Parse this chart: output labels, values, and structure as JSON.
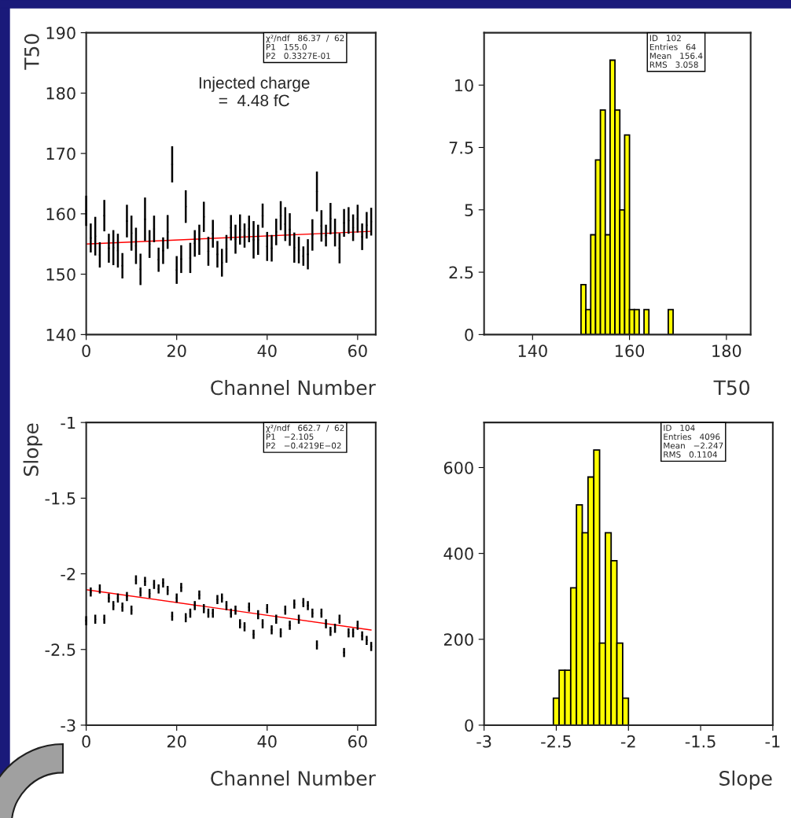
{
  "chart_data": [
    {
      "type": "scatter",
      "ylabel": "T50",
      "xlabel": "Channel Number",
      "xlim": [
        0,
        64
      ],
      "xticks": [
        0,
        20,
        40,
        60
      ],
      "ylim": [
        140,
        190
      ],
      "yticks": [
        140,
        150,
        160,
        170,
        180,
        190
      ],
      "marker": "none",
      "grid": false,
      "annotations": [
        "χ²/ndf   86.37  /  62\nP1   155.0\nP2   0.3327E-01",
        "Injected charge\n=  4.48 fC"
      ],
      "series": [
        {
          "type": "scatter",
          "color": "#000000",
          "x": [
            0,
            1,
            2,
            3,
            4,
            5,
            6,
            7,
            8,
            9,
            10,
            11,
            12,
            13,
            14,
            15,
            16,
            17,
            18,
            19,
            20,
            21,
            22,
            23,
            24,
            25,
            26,
            27,
            28,
            29,
            30,
            31,
            32,
            33,
            34,
            35,
            36,
            37,
            38,
            39,
            40,
            41,
            42,
            43,
            44,
            45,
            46,
            47,
            48,
            49,
            50,
            51,
            52,
            53,
            54,
            55,
            56,
            57,
            58,
            59,
            60,
            61,
            62,
            63
          ],
          "values": [
            160.5,
            156.0,
            156.3,
            153.2,
            159.7,
            154.3,
            154.4,
            153.9,
            151.4,
            158.8,
            156.8,
            154.7,
            150.8,
            159.1,
            155.0,
            157.5,
            152.4,
            153.9,
            157.0,
            168.2,
            150.7,
            152.5,
            161.2,
            152.7,
            155.1,
            155.7,
            159.5,
            153.8,
            156.7,
            153.3,
            151.9,
            154.2,
            157.7,
            155.8,
            157.4,
            156.4,
            157.5,
            155.7,
            155.7,
            159.7,
            154.6,
            154.3,
            157.0,
            159.7,
            158.3,
            157.4,
            154.4,
            154.0,
            153.0,
            153.3,
            156.5,
            163.7,
            158.0,
            156.4,
            159.2,
            156.9,
            154.3,
            158.5,
            158.9,
            157.7,
            159.2,
            156.2,
            158.1,
            158.7
          ],
          "errors": [
            2.5,
            2.4,
            3.2,
            2.1,
            2.6,
            2.4,
            2.9,
            2.8,
            2.1,
            2.7,
            2.9,
            3.0,
            2.6,
            3.6,
            2.3,
            2.2,
            2.0,
            2.2,
            2.8,
            3.0,
            2.3,
            2.3,
            2.7,
            2.5,
            2.2,
            2.5,
            2.5,
            2.4,
            2.3,
            2.2,
            2.3,
            2.3,
            2.1,
            2.4,
            2.5,
            2.0,
            2.2,
            3.1,
            2.5,
            2.0,
            2.4,
            2.2,
            2.2,
            2.4,
            2.8,
            2.7,
            2.5,
            2.2,
            1.6,
            2.5,
            2.6,
            3.3,
            2.6,
            1.8,
            2.6,
            2.3,
            2.5,
            2.3,
            2.2,
            2.2,
            2.3,
            2.2,
            2.2,
            2.3
          ]
        },
        {
          "type": "line",
          "color": "#ff0000",
          "x": [
            0,
            63
          ],
          "values": [
            155.0,
            157.1
          ]
        }
      ]
    },
    {
      "type": "histogram",
      "xlabel": "T50",
      "xlim": [
        130,
        185
      ],
      "xticks": [
        140,
        160,
        180
      ],
      "ylim": [
        0,
        12.1
      ],
      "yticks": [
        0,
        2.5,
        5,
        7.5,
        10
      ],
      "color": "#ffff00",
      "grid": false,
      "annotations": [
        "ID   102\nEntries   64\nMean   156.4\nRMS   3.058"
      ],
      "bins": [
        150,
        151,
        152,
        153,
        154,
        155,
        156,
        157,
        158,
        159,
        160,
        161,
        162,
        163,
        164,
        165,
        166,
        167,
        168,
        169
      ],
      "values": [
        2,
        1,
        4,
        7,
        9,
        4,
        11,
        9,
        5,
        8,
        1,
        1,
        0,
        1,
        0,
        0,
        0,
        0,
        1
      ]
    },
    {
      "type": "scatter",
      "ylabel": "Slope",
      "xlabel": "Channel Number",
      "xlim": [
        0,
        64
      ],
      "xticks": [
        0,
        20,
        40,
        60
      ],
      "ylim": [
        -3,
        -1
      ],
      "yticks": [
        -3,
        -2.5,
        -2,
        -1.5,
        -1
      ],
      "marker": "none",
      "grid": false,
      "annotations": [
        "χ²/ndf   662.7  /  62\nP1   −2.105\nP2   −0.4219E−02"
      ],
      "series": [
        {
          "type": "scatter",
          "color": "#000000",
          "x": [
            0,
            1,
            2,
            3,
            4,
            5,
            6,
            7,
            8,
            9,
            10,
            11,
            12,
            13,
            14,
            15,
            16,
            17,
            18,
            19,
            20,
            21,
            22,
            23,
            24,
            25,
            26,
            27,
            28,
            29,
            30,
            31,
            32,
            33,
            34,
            35,
            36,
            37,
            38,
            39,
            40,
            41,
            42,
            43,
            44,
            45,
            46,
            47,
            48,
            49,
            50,
            51,
            52,
            53,
            54,
            55,
            56,
            57,
            58,
            59,
            60,
            61,
            62,
            63
          ],
          "values": [
            -2.31,
            -2.12,
            -2.3,
            -2.1,
            -2.3,
            -2.16,
            -2.21,
            -2.16,
            -2.22,
            -2.15,
            -2.24,
            -2.04,
            -2.12,
            -2.05,
            -2.13,
            -2.07,
            -2.1,
            -2.06,
            -2.11,
            -2.28,
            -2.16,
            -2.09,
            -2.29,
            -2.26,
            -2.21,
            -2.14,
            -2.23,
            -2.26,
            -2.26,
            -2.17,
            -2.16,
            -2.21,
            -2.26,
            -2.24,
            -2.33,
            -2.35,
            -2.22,
            -2.4,
            -2.27,
            -2.33,
            -2.23,
            -2.37,
            -2.3,
            -2.39,
            -2.24,
            -2.34,
            -2.2,
            -2.3,
            -2.19,
            -2.21,
            -2.26,
            -2.47,
            -2.26,
            -2.33,
            -2.38,
            -2.36,
            -2.3,
            -2.52,
            -2.39,
            -2.39,
            -2.34,
            -2.41,
            -2.44,
            -2.48
          ],
          "errors": [
            0.03,
            0.03,
            0.03,
            0.03,
            0.03,
            0.03,
            0.03,
            0.03,
            0.03,
            0.03,
            0.03,
            0.03,
            0.03,
            0.03,
            0.03,
            0.03,
            0.03,
            0.03,
            0.03,
            0.03,
            0.03,
            0.03,
            0.03,
            0.03,
            0.03,
            0.03,
            0.03,
            0.03,
            0.03,
            0.03,
            0.03,
            0.03,
            0.03,
            0.03,
            0.03,
            0.03,
            0.03,
            0.03,
            0.03,
            0.03,
            0.03,
            0.03,
            0.03,
            0.03,
            0.03,
            0.03,
            0.03,
            0.03,
            0.03,
            0.03,
            0.03,
            0.03,
            0.03,
            0.03,
            0.03,
            0.03,
            0.03,
            0.03,
            0.03,
            0.03,
            0.03,
            0.03,
            0.03,
            0.03
          ]
        },
        {
          "type": "line",
          "color": "#ff0000",
          "x": [
            0,
            63
          ],
          "values": [
            -2.105,
            -2.371
          ]
        }
      ]
    },
    {
      "type": "histogram",
      "xlabel": "Slope",
      "xlim": [
        -3,
        -1
      ],
      "xticks": [
        -3,
        -2.5,
        -2,
        -1.5,
        -1
      ],
      "ylim": [
        0,
        705
      ],
      "yticks": [
        0,
        200,
        400,
        600
      ],
      "color": "#ffff00",
      "grid": false,
      "annotations": [
        "ID   104\nEntries   4096\nMean   −2.247\nRMS   0.1104"
      ],
      "bins": [
        -2.52,
        -2.48,
        -2.44,
        -2.4,
        -2.36,
        -2.32,
        -2.28,
        -2.24,
        -2.2,
        -2.16,
        -2.12,
        -2.08,
        -2.04,
        -2.0
      ],
      "values": [
        63,
        128,
        128,
        320,
        513,
        448,
        578,
        641,
        191,
        448,
        383,
        191,
        63
      ]
    }
  ]
}
